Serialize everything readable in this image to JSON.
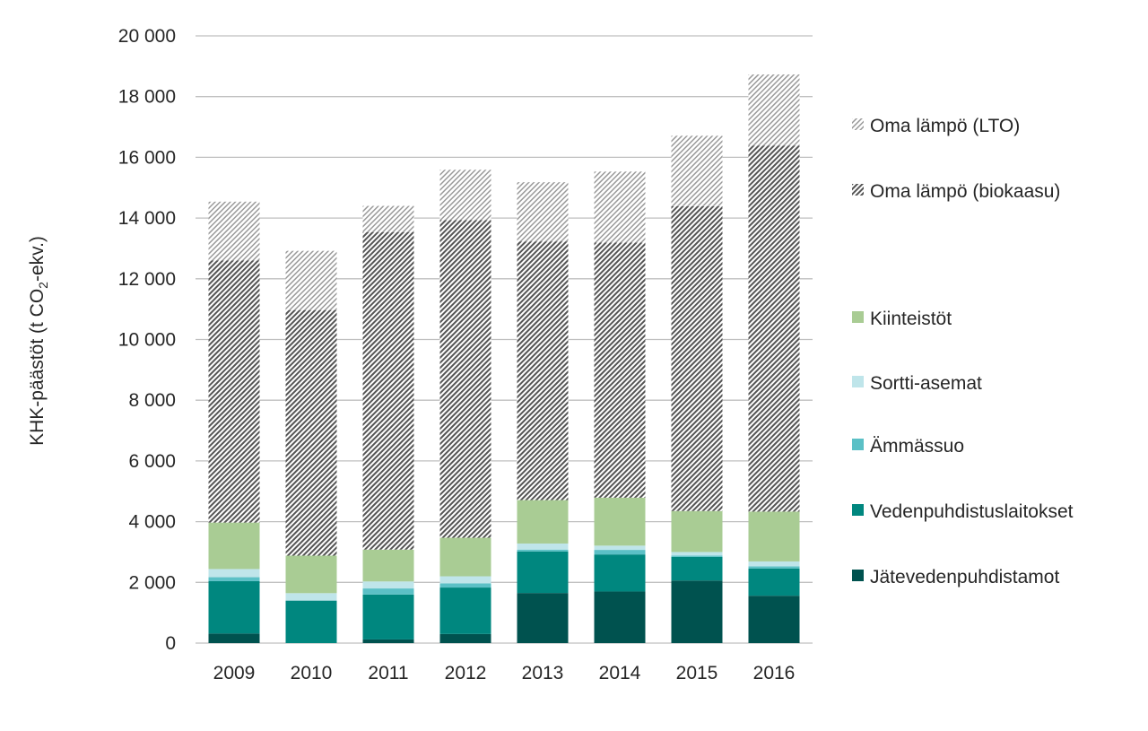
{
  "chart_data": {
    "type": "bar",
    "stacked": true,
    "title": "",
    "xlabel": "",
    "ylabel": {
      "main": "KHK-päästöt (t CO",
      "sub": "2",
      "tail": "-ekv.)"
    },
    "ylim": [
      0,
      20000
    ],
    "yticks": [
      0,
      2000,
      4000,
      6000,
      8000,
      10000,
      12000,
      14000,
      16000,
      18000,
      20000
    ],
    "ytick_labels": [
      "0",
      "2 000",
      "4 000",
      "6 000",
      "8 000",
      "10 000",
      "12 000",
      "14 000",
      "16 000",
      "18 000",
      "20 000"
    ],
    "grid": true,
    "legend_position": "right",
    "categories": [
      "2009",
      "2010",
      "2011",
      "2012",
      "2013",
      "2014",
      "2015",
      "2016"
    ],
    "series": [
      {
        "name": "Jätevedenpuhdistamot",
        "color": "#00524f",
        "pattern": "none",
        "values": [
          315,
          0,
          120,
          300,
          1650,
          1700,
          2060,
          1560
        ]
      },
      {
        "name": "Vedenpuhdistuslaitokset",
        "color": "#00877f",
        "pattern": "none",
        "values": [
          1725,
          1400,
          1480,
          1530,
          1370,
          1220,
          780,
          900
        ]
      },
      {
        "name": "Ämmässuo",
        "color": "#5bc0c6",
        "pattern": "none",
        "values": [
          130,
          0,
          200,
          140,
          60,
          150,
          40,
          70
        ]
      },
      {
        "name": "Sortti-asemat",
        "color": "#bfe5ea",
        "pattern": "none",
        "values": [
          270,
          245,
          230,
          230,
          200,
          140,
          120,
          160
        ]
      },
      {
        "name": "Kiinteistöt",
        "color": "#a9cc94",
        "pattern": "none",
        "values": [
          1530,
          1235,
          1050,
          1270,
          1430,
          1580,
          1350,
          1640
        ]
      },
      {
        "name": "Oma lämpö (biokaasu)",
        "color": "#4a4a4a",
        "pattern": "dense-diagonal",
        "values": [
          8630,
          8090,
          10460,
          10460,
          8520,
          8400,
          10040,
          12060
        ]
      },
      {
        "name": "Oma lämpö (LTO)",
        "color": "#9a9a9a",
        "pattern": "light-diagonal",
        "values": [
          1940,
          1950,
          860,
          1660,
          1950,
          2340,
          2320,
          2340
        ]
      }
    ]
  }
}
